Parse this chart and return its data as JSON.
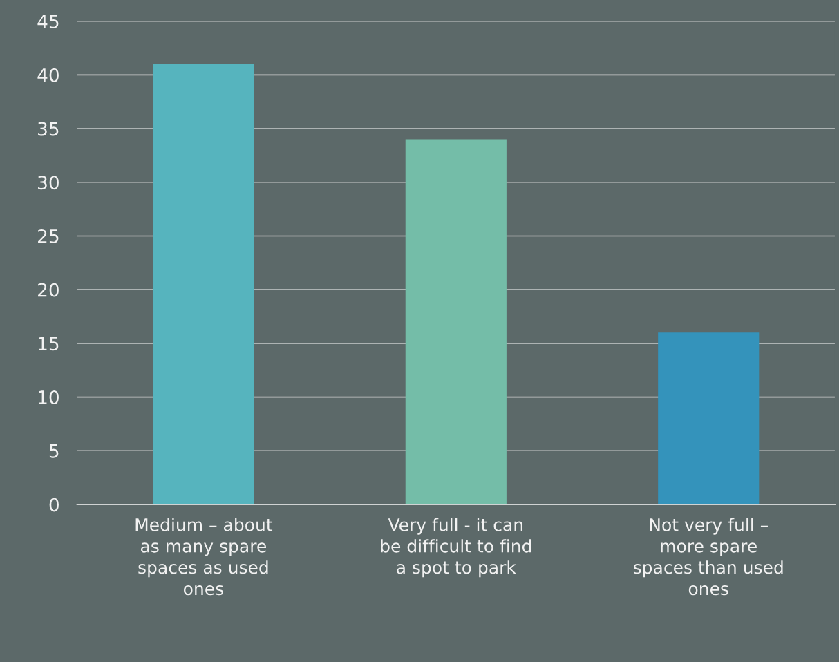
{
  "chart_data": {
    "type": "bar",
    "categories": [
      "Medium – about\nas many spare\nspaces as used\nones",
      "Very full - it can\nbe difficult to find\na spot to park",
      "Not very full –\nmore spare\nspaces than used\nones"
    ],
    "values": [
      41,
      34,
      16
    ],
    "colors": [
      "#56b4be",
      "#74bda8",
      "#3493bb"
    ],
    "ylim": [
      0,
      45
    ],
    "yticks": [
      0,
      5,
      10,
      15,
      20,
      25,
      30,
      35,
      40,
      45
    ],
    "grid": "y",
    "legend": false
  }
}
